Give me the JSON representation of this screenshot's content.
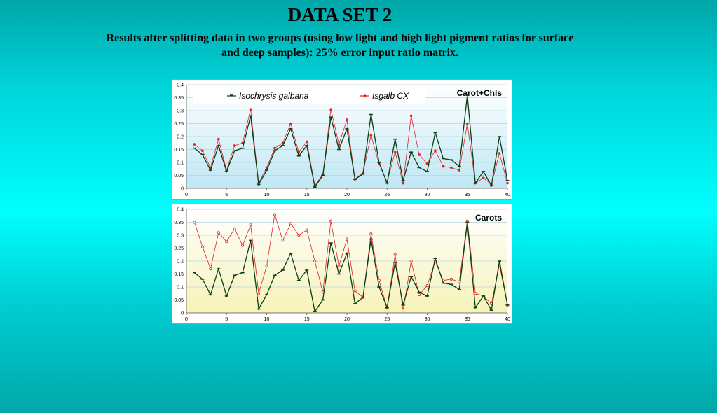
{
  "page": {
    "title": "DATA SET 2",
    "subtitle": "Results after splitting data in two groups (using low light and high light pigment ratios for surface and deep samples): 25% error input ratio matrix."
  },
  "colors": {
    "series_measured": "#0a3d12",
    "series_estimated": "#e02020",
    "plot_top_bg_top": "#ffffff",
    "plot_top_bg_bottom": "#bfe7f4",
    "plot_bottom_bg_top": "#ffffff",
    "plot_bottom_bg_bottom": "#f6f3b8"
  },
  "chart_data": [
    {
      "type": "line",
      "title": "Carot+Chls",
      "xlim": [
        0,
        40
      ],
      "ylim": [
        0,
        0.4
      ],
      "xticks": [
        0,
        5,
        10,
        15,
        20,
        25,
        30,
        35,
        40
      ],
      "yticks": [
        0,
        0.05,
        0.1,
        0.15,
        0.2,
        0.25,
        0.3,
        0.35,
        0.4
      ],
      "ytick_labels": [
        "0",
        "0.05",
        "0.1",
        "0.15",
        "0.2",
        "0.25",
        "0.3",
        "0.35",
        "0.4"
      ],
      "grid": true,
      "legend": "top",
      "x": [
        1,
        2,
        3,
        4,
        5,
        6,
        7,
        8,
        9,
        10,
        11,
        12,
        13,
        14,
        15,
        16,
        17,
        18,
        19,
        20,
        21,
        22,
        23,
        24,
        25,
        26,
        27,
        28,
        29,
        30,
        31,
        32,
        33,
        34,
        35,
        36,
        37,
        38,
        39,
        40
      ],
      "series": [
        {
          "name": "Isochrysis galbana",
          "values": [
            0.155,
            0.13,
            0.07,
            0.165,
            0.065,
            0.145,
            0.155,
            0.28,
            0.015,
            0.07,
            0.145,
            0.165,
            0.23,
            0.125,
            0.165,
            0.005,
            0.05,
            0.275,
            0.15,
            0.23,
            0.035,
            0.055,
            0.285,
            0.1,
            0.02,
            0.19,
            0.03,
            0.14,
            0.08,
            0.065,
            0.215,
            0.115,
            0.11,
            0.085,
            0.36,
            0.02,
            0.065,
            0.01,
            0.2,
            0.03
          ]
        },
        {
          "name": "Isgalb CX",
          "values": [
            0.17,
            0.145,
            0.08,
            0.19,
            0.07,
            0.165,
            0.175,
            0.305,
            0.02,
            0.08,
            0.155,
            0.175,
            0.25,
            0.14,
            0.18,
            0.01,
            0.055,
            0.305,
            0.17,
            0.265,
            0.035,
            0.06,
            0.205,
            0.095,
            0.025,
            0.14,
            0.02,
            0.28,
            0.13,
            0.095,
            0.145,
            0.085,
            0.08,
            0.07,
            0.25,
            0.02,
            0.04,
            0.015,
            0.135,
            0.02
          ]
        }
      ]
    },
    {
      "type": "line",
      "title": "Carots",
      "xlim": [
        0,
        40
      ],
      "ylim": [
        0,
        0.4
      ],
      "xticks": [
        0,
        5,
        10,
        15,
        20,
        25,
        30,
        35,
        40
      ],
      "yticks": [
        0,
        0.05,
        0.1,
        0.15,
        0.2,
        0.25,
        0.3,
        0.35,
        0.4
      ],
      "ytick_labels": [
        "0",
        "0.05",
        "0.1",
        "0.15",
        "0.2",
        "0.25",
        "0.3",
        "0.35",
        "0.4"
      ],
      "grid": true,
      "x": [
        1,
        2,
        3,
        4,
        5,
        6,
        7,
        8,
        9,
        10,
        11,
        12,
        13,
        14,
        15,
        16,
        17,
        18,
        19,
        20,
        21,
        22,
        23,
        24,
        25,
        26,
        27,
        28,
        29,
        30,
        31,
        32,
        33,
        34,
        35,
        36,
        37,
        38,
        39,
        40
      ],
      "series": [
        {
          "name": "",
          "values": [
            0.155,
            0.13,
            0.07,
            0.17,
            0.065,
            0.145,
            0.155,
            0.28,
            0.015,
            0.07,
            0.145,
            0.165,
            0.23,
            0.125,
            0.165,
            0.005,
            0.05,
            0.27,
            0.15,
            0.23,
            0.035,
            0.06,
            0.285,
            0.1,
            0.02,
            0.195,
            0.03,
            0.14,
            0.08,
            0.065,
            0.21,
            0.115,
            0.11,
            0.09,
            0.35,
            0.02,
            0.065,
            0.01,
            0.2,
            0.03
          ]
        },
        {
          "name": "",
          "values": [
            0.35,
            0.255,
            0.17,
            0.31,
            0.275,
            0.325,
            0.26,
            0.34,
            0.075,
            0.18,
            0.38,
            0.28,
            0.345,
            0.3,
            0.32,
            0.2,
            0.08,
            0.355,
            0.18,
            0.285,
            0.085,
            0.06,
            0.305,
            0.125,
            0.02,
            0.225,
            0.01,
            0.2,
            0.07,
            0.105,
            0.2,
            0.125,
            0.13,
            0.12,
            0.355,
            0.075,
            0.065,
            0.035,
            0.185,
            0.03
          ]
        }
      ]
    }
  ]
}
